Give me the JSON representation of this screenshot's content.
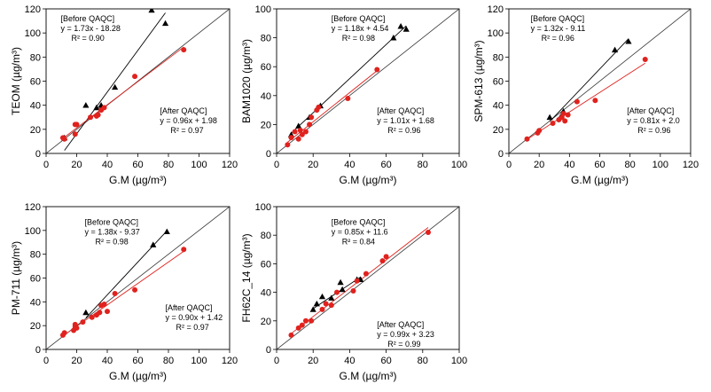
{
  "chart_data": [
    {
      "type": "scatter",
      "panel": "TEOM",
      "xlabel": "G.M (µg/m³)",
      "ylabel": "TEOM (µg/m³)",
      "xlim": [
        0,
        120
      ],
      "ylim": [
        0,
        120
      ],
      "xticks": [
        "0",
        "20",
        "40",
        "60",
        "80",
        "100",
        "120"
      ],
      "yticks": [
        "0",
        "20",
        "40",
        "60",
        "80",
        "100",
        "120"
      ],
      "before": {
        "title": "[Before QAQC]",
        "equation": "y = 1.73x - 18.28",
        "r2": "R² = 0.90",
        "slope": 1.73,
        "intercept": -18.28,
        "points": [
          [
            26,
            40
          ],
          [
            33,
            38
          ],
          [
            36,
            40
          ],
          [
            45,
            55
          ],
          [
            69,
            119
          ],
          [
            78,
            108
          ],
          [
            12,
            13
          ]
        ]
      },
      "after": {
        "title": "[After QAQC]",
        "equation": "y = 0.96x + 1.98",
        "r2": "R² = 0.97",
        "slope": 0.96,
        "intercept": 1.98,
        "points": [
          [
            11,
            13
          ],
          [
            12,
            12
          ],
          [
            19,
            16
          ],
          [
            19,
            24
          ],
          [
            20,
            24
          ],
          [
            29,
            30
          ],
          [
            33,
            31
          ],
          [
            34,
            32
          ],
          [
            36,
            36
          ],
          [
            38,
            38
          ],
          [
            58,
            64
          ],
          [
            90,
            86
          ]
        ]
      }
    },
    {
      "type": "scatter",
      "panel": "BAM1020",
      "xlabel": "G.M (µg/m³)",
      "ylabel": "BAM1020 (µg/m³)",
      "xlim": [
        0,
        100
      ],
      "ylim": [
        0,
        100
      ],
      "xticks": [
        "0",
        "20",
        "40",
        "60",
        "80",
        "100"
      ],
      "yticks": [
        "0",
        "20",
        "40",
        "60",
        "80",
        "100"
      ],
      "before": {
        "title": "[Before QAQC]",
        "equation": "y = 1.18x + 4.54",
        "r2": "R² = 0.98",
        "slope": 1.18,
        "intercept": 4.54,
        "points": [
          [
            8,
            13
          ],
          [
            12,
            19
          ],
          [
            18,
            25
          ],
          [
            24,
            33
          ],
          [
            64,
            80
          ],
          [
            68,
            88
          ],
          [
            71,
            86
          ]
        ]
      },
      "after": {
        "title": "[After QAQC]",
        "equation": "y = 1.01x + 1.68",
        "r2": "R² = 0.96",
        "slope": 1.01,
        "intercept": 1.68,
        "points": [
          [
            6,
            6
          ],
          [
            8,
            11
          ],
          [
            10,
            15
          ],
          [
            12,
            10
          ],
          [
            13,
            16
          ],
          [
            14,
            13
          ],
          [
            16,
            15
          ],
          [
            18,
            20
          ],
          [
            19,
            25
          ],
          [
            22,
            30
          ],
          [
            23,
            32
          ],
          [
            39,
            38
          ],
          [
            55,
            58
          ]
        ]
      }
    },
    {
      "type": "scatter",
      "panel": "SPM-613",
      "xlabel": "G.M (µg/m³)",
      "ylabel": "SPM-613 (µg/m³)",
      "xlim": [
        0,
        120
      ],
      "ylim": [
        0,
        120
      ],
      "xticks": [
        "0",
        "20",
        "40",
        "60",
        "80",
        "100",
        "120"
      ],
      "yticks": [
        "0",
        "20",
        "40",
        "60",
        "80",
        "100",
        "120"
      ],
      "before": {
        "title": "[Before QAQC]",
        "equation": "y = 1.32x - 9.11",
        "r2": "R² = 0.96",
        "slope": 1.32,
        "intercept": -9.11,
        "points": [
          [
            27,
            30
          ],
          [
            34,
            30
          ],
          [
            36,
            35
          ],
          [
            70,
            86
          ],
          [
            79,
            93
          ]
        ]
      },
      "after": {
        "title": "[After QAQC]",
        "equation": "y = 0.81x + 2.0",
        "r2": "R² = 0.96",
        "slope": 0.81,
        "intercept": 2.0,
        "points": [
          [
            12,
            12
          ],
          [
            19,
            17
          ],
          [
            20,
            19
          ],
          [
            29,
            25
          ],
          [
            33,
            28
          ],
          [
            35,
            30
          ],
          [
            36,
            33
          ],
          [
            37,
            27
          ],
          [
            39,
            32
          ],
          [
            45,
            43
          ],
          [
            57,
            44
          ],
          [
            90,
            78
          ]
        ]
      }
    },
    {
      "type": "scatter",
      "panel": "PM-711",
      "xlabel": "G.M (µg/m³)",
      "ylabel": "PM-711 (µg/m³)",
      "xlim": [
        0,
        120
      ],
      "ylim": [
        0,
        120
      ],
      "xticks": [
        "0",
        "20",
        "40",
        "60",
        "80",
        "100",
        "120"
      ],
      "yticks": [
        "0",
        "20",
        "40",
        "60",
        "80",
        "100",
        "120"
      ],
      "before": {
        "title": "[Before QAQC]",
        "equation": "y = 1.38x - 9.37",
        "r2": "R² = 0.98",
        "slope": 1.38,
        "intercept": -9.37,
        "points": [
          [
            26,
            31
          ],
          [
            70,
            88
          ],
          [
            79,
            99
          ]
        ]
      },
      "after": {
        "title": "[After QAQC]",
        "equation": "y = 0.90x + 1.42",
        "r2": "R² = 0.97",
        "slope": 0.9,
        "intercept": 1.42,
        "points": [
          [
            11,
            12
          ],
          [
            12,
            14
          ],
          [
            18,
            16
          ],
          [
            19,
            19
          ],
          [
            19,
            21
          ],
          [
            20,
            18
          ],
          [
            24,
            23
          ],
          [
            30,
            27
          ],
          [
            33,
            29
          ],
          [
            35,
            31
          ],
          [
            36,
            37
          ],
          [
            38,
            38
          ],
          [
            40,
            32
          ],
          [
            45,
            47
          ],
          [
            58,
            50
          ],
          [
            90,
            84
          ]
        ]
      }
    },
    {
      "type": "scatter",
      "panel": "FH62C_14",
      "xlabel": "G.M (µg/m³)",
      "ylabel": "FH62C_14 (µg/m³)",
      "xlim": [
        0,
        100
      ],
      "ylim": [
        0,
        100
      ],
      "xticks": [
        "0",
        "20",
        "40",
        "60",
        "80",
        "100"
      ],
      "yticks": [
        "0",
        "20",
        "40",
        "60",
        "80",
        "100"
      ],
      "before": {
        "title": "[Before QAQC]",
        "equation": "y = 0.85x + 11.6",
        "r2": "R² = 0.84",
        "slope": 0.85,
        "intercept": 11.6,
        "points": [
          [
            20,
            28
          ],
          [
            22,
            32
          ],
          [
            25,
            37
          ],
          [
            30,
            36
          ],
          [
            35,
            47
          ],
          [
            36,
            42
          ],
          [
            44,
            49
          ],
          [
            46,
            49
          ]
        ]
      },
      "after": {
        "title": "[After QAQC]",
        "equation": "y = 0.99x + 3.23",
        "r2": "R² = 0.99",
        "slope": 0.99,
        "intercept": 3.23,
        "points": [
          [
            8,
            10
          ],
          [
            12,
            15
          ],
          [
            14,
            17
          ],
          [
            16,
            20
          ],
          [
            19,
            20
          ],
          [
            25,
            28
          ],
          [
            27,
            32
          ],
          [
            30,
            31
          ],
          [
            33,
            40
          ],
          [
            42,
            41
          ],
          [
            44,
            48
          ],
          [
            49,
            53
          ],
          [
            58,
            62
          ],
          [
            60,
            65
          ],
          [
            83,
            82
          ]
        ]
      }
    }
  ]
}
